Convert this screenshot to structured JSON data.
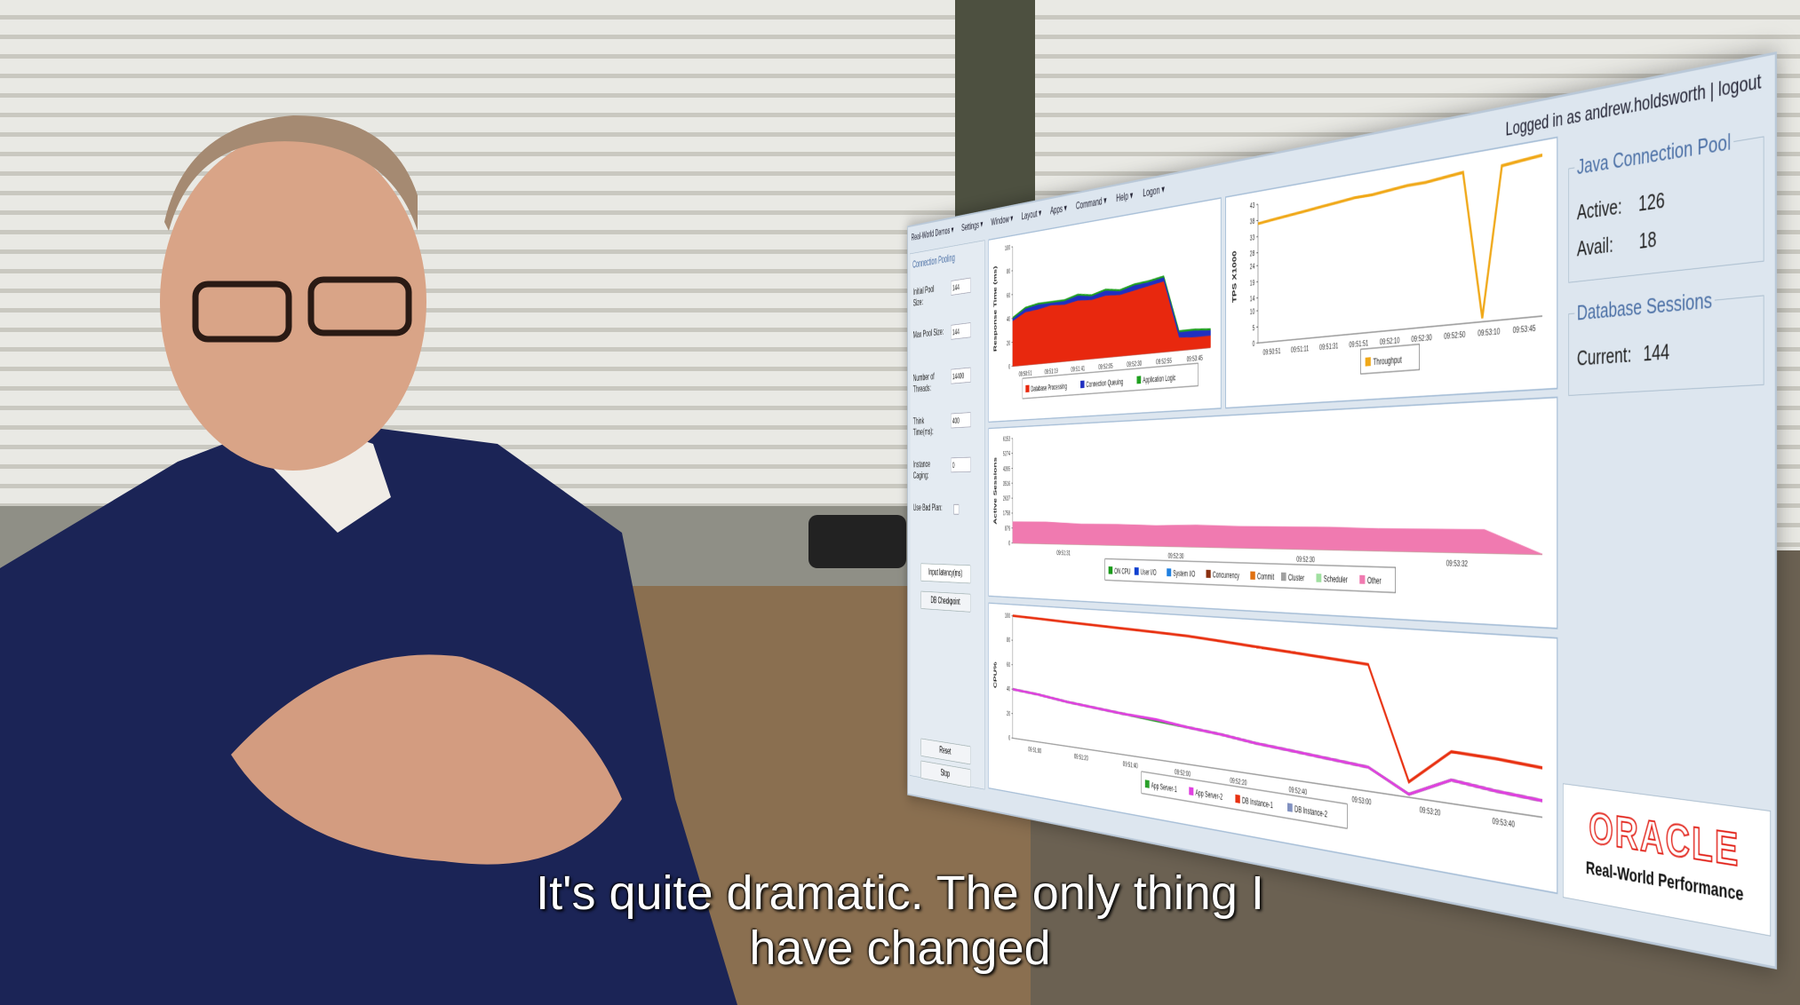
{
  "subtitle": [
    "It's quite dramatic. The only thing I",
    "have changed"
  ],
  "dashboard": {
    "user": "Logged in as andrew.holdsworth",
    "logout": "logout",
    "menu": [
      "Real-World Demos",
      "Settings",
      "Window",
      "Layout",
      "Apps",
      "Command",
      "Help",
      "Logon"
    ],
    "sidebar": {
      "title": "Connection Pooling",
      "fields": [
        {
          "label": "Initial Pool Size:",
          "value": 144
        },
        {
          "label": "Max Pool Size:",
          "value": 144
        },
        {
          "label": "Number of Threads:",
          "value": 14400
        },
        {
          "label": "Think Time(ms):",
          "value": 400
        },
        {
          "label": "Instance Caging:",
          "value": 0
        }
      ],
      "checkbox": "Use Bad Plan:",
      "select": "Input latency(ms)",
      "buttons": [
        "DB Checkpoint",
        "Reset",
        "Stop"
      ]
    },
    "right_panel": {
      "pool_title": "Java Connection Pool",
      "active_label": "Active:",
      "active": 126,
      "avail_label": "Avail:",
      "avail": 18,
      "sessions_title": "Database Sessions",
      "current_label": "Current:",
      "current": 144,
      "logo": "ORACLE",
      "logo_sub": "Real-World Performance"
    },
    "charts": [
      {
        "type": "stacked-area",
        "y_label": "Response Time (ms)",
        "ylim": [
          0,
          100
        ],
        "yticks": [
          0,
          20,
          40,
          60,
          80,
          100
        ],
        "xticks": [
          "09:50:51",
          "09:51:19",
          "09:51:41",
          "09:52:05",
          "09:52:30",
          "09:52:55",
          "09:53:45"
        ],
        "series": [
          {
            "name": "Database Processing",
            "color": "#e8280e",
            "values": [
              38,
              44,
              45,
              47,
              46,
              48,
              47,
              49,
              48,
              50,
              52,
              54,
              10,
              9,
              9
            ]
          },
          {
            "name": "Connection Queuing",
            "color": "#2030c0",
            "values": [
              2,
              3,
              4,
              2,
              3,
              4,
              3,
              4,
              3,
              4,
              3,
              3,
              4,
              5,
              4
            ]
          },
          {
            "name": "Application Logic",
            "color": "#20a020",
            "values": [
              1,
              1,
              1,
              1,
              1,
              1,
              1,
              1,
              1,
              1,
              1,
              1,
              1,
              1,
              1
            ]
          }
        ]
      },
      {
        "type": "line",
        "y_label": "TPS X1000",
        "ylim": [
          0,
          43
        ],
        "yticks": [
          0,
          5,
          10,
          14,
          19,
          24,
          28,
          33,
          38,
          43
        ],
        "xticks": [
          "09:50:51",
          "09:51:11",
          "09:51:31",
          "09:51:51",
          "09:52:10",
          "09:52:30",
          "09:52:50",
          "09:53:10",
          "09:53:45"
        ],
        "series": [
          {
            "name": "Throughput",
            "color": "#f0a818",
            "values": [
              37,
              37.5,
              38,
              38.5,
              39,
              39.5,
              40,
              40,
              40.5,
              41,
              41,
              41.5,
              42,
              1,
              42,
              42.5,
              43
            ]
          }
        ]
      },
      {
        "type": "stacked-area",
        "y_label": "Active Sessions",
        "ylim": [
          0,
          6153
        ],
        "yticks": [
          0,
          879,
          1758,
          2637,
          3516,
          4395,
          5274,
          6153
        ],
        "xticks": [
          "09:51:31",
          "09:52:30",
          "09:52:30",
          "09:53:32"
        ],
        "series": [
          {
            "name": "ON CPU",
            "color": "#1a9a1a",
            "values": [
              0,
              0,
              0,
              0,
              0,
              0,
              0,
              0,
              0,
              0,
              0,
              0,
              0
            ]
          },
          {
            "name": "User I/O",
            "color": "#1040d0",
            "values": [
              0,
              0,
              0,
              0,
              0,
              0,
              0,
              0,
              0,
              0,
              0,
              0,
              0
            ]
          },
          {
            "name": "System I/O",
            "color": "#2080e0",
            "values": [
              0,
              0,
              0,
              0,
              0,
              0,
              0,
              0,
              0,
              0,
              0,
              0,
              0
            ]
          },
          {
            "name": "Concurrency",
            "color": "#8a3010",
            "values": [
              0,
              0,
              0,
              0,
              0,
              0,
              0,
              0,
              0,
              0,
              0,
              0,
              0
            ]
          },
          {
            "name": "Commit",
            "color": "#e07010",
            "values": [
              0,
              0,
              0,
              0,
              0,
              0,
              0,
              0,
              0,
              0,
              0,
              0,
              0
            ]
          },
          {
            "name": "Cluster",
            "color": "#a0a0a0",
            "values": [
              0,
              0,
              0,
              0,
              0,
              0,
              0,
              0,
              0,
              0,
              0,
              0,
              0
            ]
          },
          {
            "name": "Scheduler",
            "color": "#a0e0a0",
            "values": [
              0,
              0,
              0,
              0,
              0,
              0,
              0,
              0,
              0,
              0,
              0,
              0,
              0
            ]
          },
          {
            "name": "Other",
            "color": "#f07ab0",
            "values": [
              1250,
              1250,
              1150,
              1150,
              1100,
              1150,
              1100,
              1100,
              1100,
              1050,
              1050,
              1050,
              0
            ]
          }
        ]
      },
      {
        "type": "line",
        "y_label": "CPU%",
        "ylim": [
          0,
          100
        ],
        "yticks": [
          0,
          20,
          40,
          60,
          80,
          100
        ],
        "xticks": [
          "09:51:00",
          "09:51:20",
          "09:51:40",
          "09:52:00",
          "09:52:20",
          "09:52:40",
          "09:53:00",
          "09:53:20",
          "09:53:40"
        ],
        "series": [
          {
            "name": "App Server-1",
            "color": "#2aa02a",
            "values": [
              40,
              38,
              35,
              33,
              31,
              29,
              27,
              25,
              22,
              20,
              18,
              16,
              2,
              15,
              12,
              10
            ]
          },
          {
            "name": "App Server-2",
            "color": "#e040e0",
            "values": [
              40,
              38,
              35,
              33,
              31,
              30,
              27,
              25,
              22,
              20,
              18,
              16,
              2,
              15,
              12,
              10
            ]
          },
          {
            "name": "DB Instance-1",
            "color": "#e83010",
            "values": [
              100,
              99,
              98,
              97,
              96,
              95,
              94,
              92,
              90,
              88,
              86,
              84,
              10,
              33,
              32,
              30
            ]
          },
          {
            "name": "DB Instance-2",
            "color": "#8090c0",
            "values": [
              null,
              null,
              null,
              null,
              null,
              null,
              null,
              null,
              null,
              null,
              null,
              null,
              null,
              null,
              null,
              null
            ]
          }
        ]
      }
    ]
  }
}
